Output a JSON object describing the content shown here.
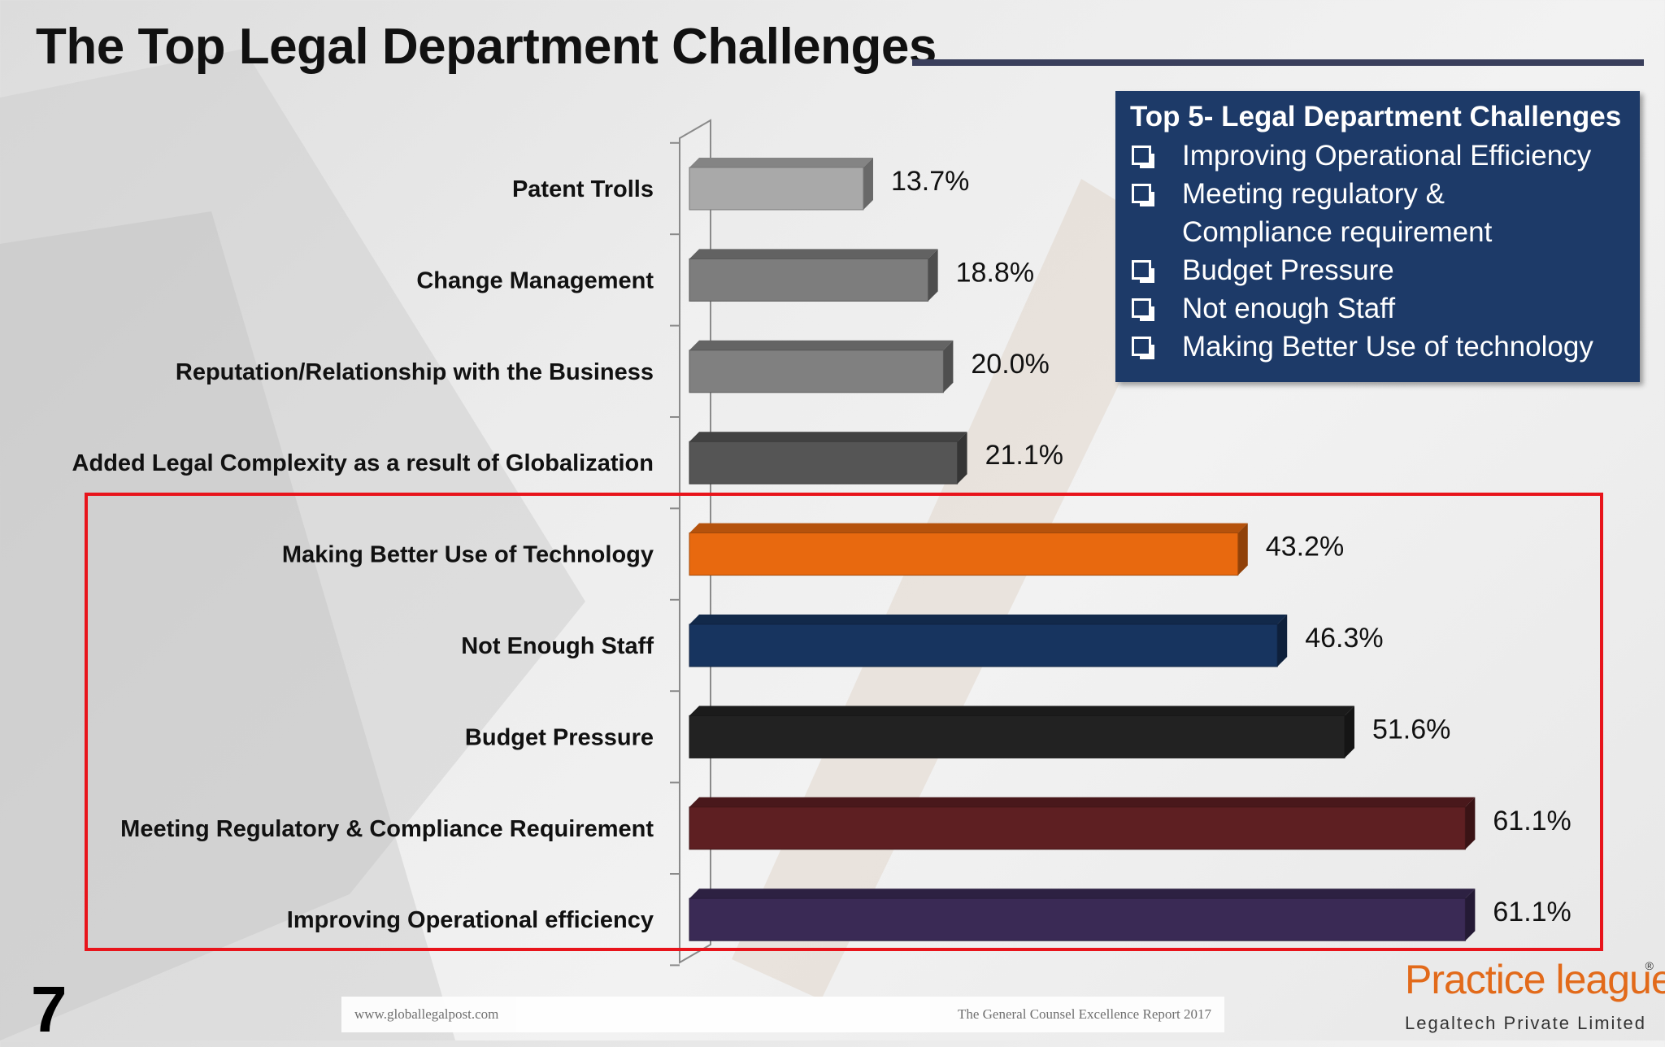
{
  "slide": {
    "title": "The Top Legal Department Challenges",
    "page_number": "7"
  },
  "chart_data": {
    "type": "bar",
    "orientation": "horizontal",
    "style": "3d",
    "categories": [
      "Patent Trolls",
      "Change Management",
      "Reputation/Relationship with the Business",
      "Added Legal Complexity as a result of Globalization",
      "Making Better Use of Technology",
      "Not Enough Staff",
      "Budget Pressure",
      "Meeting Regulatory & Compliance Requirement",
      "Improving Operational efficiency"
    ],
    "values": [
      13.7,
      18.8,
      20.0,
      21.1,
      43.2,
      46.3,
      51.6,
      61.1,
      61.1
    ],
    "value_labels": [
      "13.7%",
      "18.8%",
      "20.0%",
      "21.1%",
      "43.2%",
      "46.3%",
      "51.6%",
      "61.1%",
      "61.1%"
    ],
    "colors": [
      "#a9a9a9",
      "#7d7d7d",
      "#808080",
      "#555555",
      "#e8690f",
      "#17345f",
      "#222222",
      "#5e1f22",
      "#3a2a55"
    ],
    "xlim": [
      0,
      62
    ],
    "grid": false,
    "legend": "none",
    "highlighted_categories": [
      4,
      5,
      6,
      7,
      8
    ],
    "highlight_color": "#e8141b"
  },
  "top5": {
    "title": "Top 5- Legal Department Challenges",
    "items": [
      "Improving Operational Efficiency",
      "Meeting regulatory & Compliance requirement",
      "Budget Pressure",
      "Not enough Staff",
      "Making Better Use of technology"
    ],
    "background": "#1d3a68"
  },
  "footer": {
    "source_left": "www.globallegalpost.com",
    "source_right": "The General Counsel Excellence Report 2017"
  },
  "logo": {
    "name": "Practice league",
    "subtitle": "Legaltech Private Limited",
    "registered_mark": "®"
  }
}
